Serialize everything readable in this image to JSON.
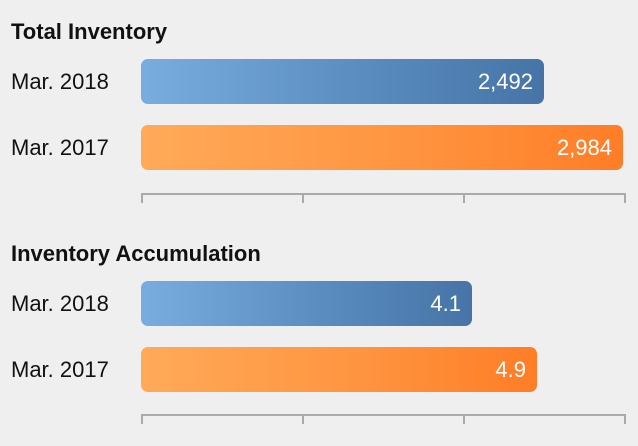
{
  "colors": {
    "blue": "#4a7fb4",
    "orange": "#ff8a33",
    "background": "#efefef"
  },
  "chart_data": [
    {
      "type": "bar",
      "orientation": "horizontal",
      "title": "Total Inventory",
      "categories": [
        "Mar. 2018",
        "Mar. 2017"
      ],
      "values": [
        2492,
        2984
      ],
      "value_labels": [
        "2,492",
        "2,984"
      ],
      "bar_colors": [
        "blue",
        "orange"
      ],
      "xlim": [
        0,
        3000
      ],
      "ticks": 4
    },
    {
      "type": "bar",
      "orientation": "horizontal",
      "title": "Inventory Accumulation",
      "categories": [
        "Mar. 2018",
        "Mar. 2017"
      ],
      "values": [
        4.1,
        4.9
      ],
      "value_labels": [
        "4.1",
        "4.9"
      ],
      "bar_colors": [
        "blue",
        "orange"
      ],
      "xlim": [
        0,
        6
      ],
      "ticks": 4
    }
  ]
}
